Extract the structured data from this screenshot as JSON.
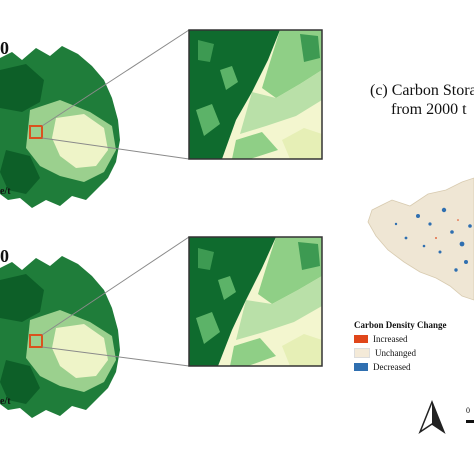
{
  "panel_a": {
    "year_label": "0",
    "unit_label": "e/t"
  },
  "panel_b": {
    "year_label": "0",
    "unit_label": "e/t"
  },
  "panel_c": {
    "title_line1": "(c) Carbon Stora",
    "title_line2": "from 2000 t"
  },
  "legend": {
    "title": "Carbon Density Change",
    "items": [
      {
        "label": "Increased",
        "color": "#e0461a"
      },
      {
        "label": "Unchanged",
        "color": "#f4ead8"
      },
      {
        "label": "Decreased",
        "color": "#2f6fb0"
      }
    ]
  },
  "scale_label": "0",
  "colors": {
    "forest_dark": "#0f6b2e",
    "forest_mid": "#3d9a52",
    "forest_light": "#8fcf86",
    "pale": "#f3f6cf",
    "highlight_box": "#d9531e"
  }
}
